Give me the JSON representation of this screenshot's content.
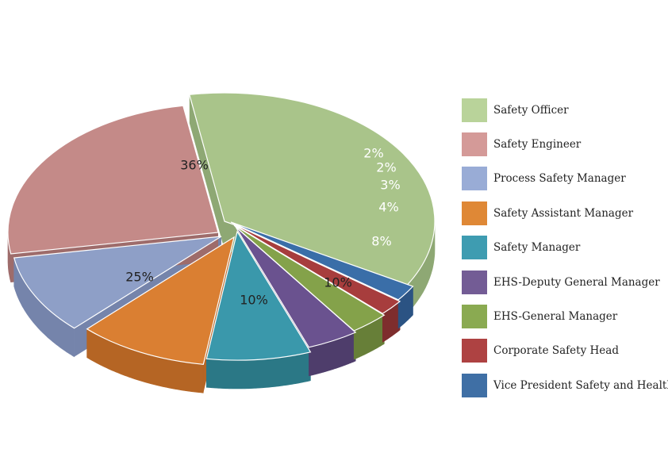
{
  "chart_data": {
    "type": "pie",
    "style": "3d-exploded",
    "legend_position": "right",
    "slices": [
      {
        "label": "Safety Officer",
        "value": 36,
        "display": "36%",
        "color": "#a9c48a",
        "side_color": "#8ea874",
        "label_color": "#222222"
      },
      {
        "label": "Safety Engineer",
        "value": 25,
        "display": "25%",
        "color": "#c48a88",
        "side_color": "#9e6c6b",
        "label_color": "#222222"
      },
      {
        "label": "Process Safety Manager",
        "value": 10,
        "display": "10%",
        "color": "#8e9fc7",
        "side_color": "#7584ab",
        "label_color": "#222222"
      },
      {
        "label": "Safety Assistant Manager",
        "value": 10,
        "display": "10%",
        "color": "#da7f32",
        "side_color": "#b56524",
        "label_color": "#222222"
      },
      {
        "label": "Safety Manager",
        "value": 8,
        "display": "8%",
        "color": "#3a98ab",
        "side_color": "#2b7886",
        "label_color": "#ffffff"
      },
      {
        "label": "EHS-Deputy General Manager",
        "value": 4,
        "display": "4%",
        "color": "#6a528f",
        "side_color": "#4e3d6b",
        "label_color": "#ffffff"
      },
      {
        "label": "EHS-General Manager",
        "value": 3,
        "display": "3%",
        "color": "#84a24a",
        "side_color": "#677f38",
        "label_color": "#ffffff"
      },
      {
        "label": "Corporate Safety Head",
        "value": 2,
        "display": "2%",
        "color": "#a73d3d",
        "side_color": "#7e2d2d",
        "label_color": "#ffffff"
      },
      {
        "label": "Vice President Safety and Health",
        "value": 2,
        "display": "2%",
        "color": "#3a6ea8",
        "side_color": "#2b5383",
        "label_color": "#ffffff"
      }
    ],
    "legend_colors": [
      "#b9d39a",
      "#d49a98",
      "#99acd6",
      "#df8836",
      "#3e9cb1",
      "#735c95",
      "#8aaa51",
      "#ae4242",
      "#3f6fa5"
    ]
  }
}
